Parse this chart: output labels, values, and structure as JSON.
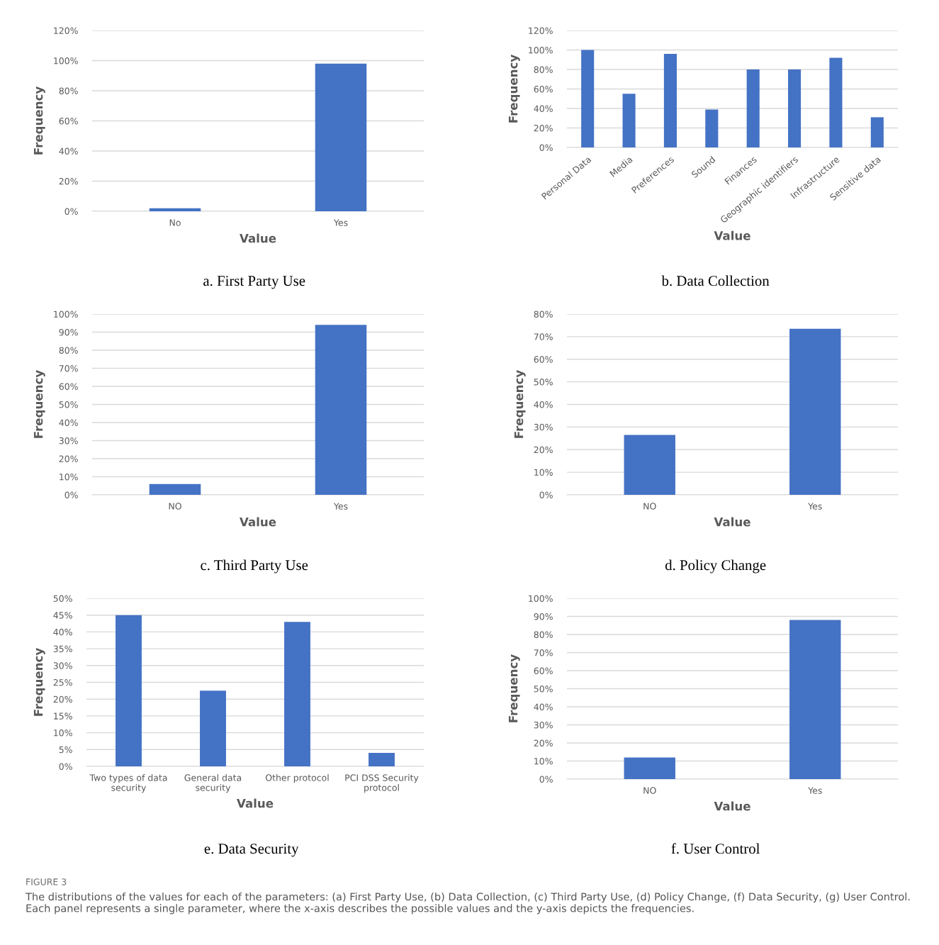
{
  "chart_data": [
    {
      "type": "bar",
      "title": "a. First Party Use",
      "xlabel": "Value",
      "ylabel": "Frequency",
      "categories": [
        "No",
        "Yes"
      ],
      "values": [
        2,
        98
      ],
      "color": "#4472c4",
      "ylim": [
        0,
        120
      ],
      "yticks": [
        {
          "value": 0,
          "label": "0%"
        },
        {
          "value": 20,
          "label": "20%"
        },
        {
          "value": 40,
          "label": "40%"
        },
        {
          "value": 60,
          "label": "60%"
        },
        {
          "value": 80,
          "label": "80%"
        },
        {
          "value": 100,
          "label": "100%"
        },
        {
          "value": 120,
          "label": "120%"
        }
      ],
      "grid": "y",
      "legend": false
    },
    {
      "type": "bar",
      "title": "b. Data Collection",
      "xlabel": "Value",
      "ylabel": "Frequency",
      "categories": [
        "Personal Data",
        "Media",
        "Preferences",
        "Sound",
        "Finances",
        "Geographic identifiers",
        "Infrastructure",
        "Sensitive data"
      ],
      "values": [
        100,
        55,
        96,
        39,
        80,
        80,
        92,
        31
      ],
      "color": "#4472c4",
      "ylim": [
        0,
        120
      ],
      "yticks": [
        {
          "value": 0,
          "label": "0%"
        },
        {
          "value": 20,
          "label": "20%"
        },
        {
          "value": 40,
          "label": "40%"
        },
        {
          "value": 60,
          "label": "60%"
        },
        {
          "value": 80,
          "label": "80%"
        },
        {
          "value": 100,
          "label": "100%"
        },
        {
          "value": 120,
          "label": "120%"
        }
      ],
      "grid": "y",
      "legend": false
    },
    {
      "type": "bar",
      "title": "c. Third Party Use",
      "xlabel": "Value",
      "ylabel": "Frequency",
      "categories": [
        "NO",
        "Yes"
      ],
      "values": [
        6,
        94
      ],
      "color": "#4472c4",
      "ylim": [
        0,
        100
      ],
      "yticks": [
        {
          "value": 0,
          "label": "0%"
        },
        {
          "value": 10,
          "label": "10%"
        },
        {
          "value": 20,
          "label": "20%"
        },
        {
          "value": 30,
          "label": "30%"
        },
        {
          "value": 40,
          "label": "40%"
        },
        {
          "value": 50,
          "label": "50%"
        },
        {
          "value": 60,
          "label": "60%"
        },
        {
          "value": 70,
          "label": "70%"
        },
        {
          "value": 80,
          "label": "80%"
        },
        {
          "value": 90,
          "label": "90%"
        },
        {
          "value": 100,
          "label": "100%"
        }
      ],
      "grid": "y",
      "legend": false
    },
    {
      "type": "bar",
      "title": "d. Policy Change",
      "xlabel": "Value",
      "ylabel": "Frequency",
      "categories": [
        "NO",
        "Yes"
      ],
      "values": [
        26.5,
        73.5
      ],
      "color": "#4472c4",
      "ylim": [
        0,
        80
      ],
      "yticks": [
        {
          "value": 0,
          "label": "0%"
        },
        {
          "value": 10,
          "label": "10%"
        },
        {
          "value": 20,
          "label": "20%"
        },
        {
          "value": 30,
          "label": "30%"
        },
        {
          "value": 40,
          "label": "40%"
        },
        {
          "value": 50,
          "label": "50%"
        },
        {
          "value": 60,
          "label": "60%"
        },
        {
          "value": 70,
          "label": "70%"
        },
        {
          "value": 80,
          "label": "80%"
        }
      ],
      "grid": "y",
      "legend": false
    },
    {
      "type": "bar",
      "title": "e. Data Security",
      "xlabel": "Value",
      "ylabel": "Frequency",
      "categories": [
        "Two types of data\nsecurity",
        "General data\nsecurity",
        "Other protocol",
        "PCI DSS Security\nprotocol"
      ],
      "values": [
        45,
        22.5,
        43,
        4
      ],
      "color": "#4472c4",
      "ylim": [
        0,
        50
      ],
      "yticks": [
        {
          "value": 0,
          "label": "0%"
        },
        {
          "value": 5,
          "label": "5%"
        },
        {
          "value": 10,
          "label": "10%"
        },
        {
          "value": 15,
          "label": "15%"
        },
        {
          "value": 20,
          "label": "20%"
        },
        {
          "value": 25,
          "label": "25%"
        },
        {
          "value": 30,
          "label": "30%"
        },
        {
          "value": 35,
          "label": "35%"
        },
        {
          "value": 40,
          "label": "40%"
        },
        {
          "value": 45,
          "label": "45%"
        },
        {
          "value": 50,
          "label": "50%"
        }
      ],
      "grid": "y",
      "legend": false
    },
    {
      "type": "bar",
      "title": "f. User Control",
      "xlabel": "Value",
      "ylabel": "Frequency",
      "categories": [
        "NO",
        "Yes"
      ],
      "values": [
        12,
        88
      ],
      "color": "#4472c4",
      "ylim": [
        0,
        100
      ],
      "yticks": [
        {
          "value": 0,
          "label": "0%"
        },
        {
          "value": 10,
          "label": "10%"
        },
        {
          "value": 20,
          "label": "20%"
        },
        {
          "value": 30,
          "label": "30%"
        },
        {
          "value": 40,
          "label": "40%"
        },
        {
          "value": 50,
          "label": "50%"
        },
        {
          "value": 60,
          "label": "60%"
        },
        {
          "value": 70,
          "label": "70%"
        },
        {
          "value": 80,
          "label": "80%"
        },
        {
          "value": 90,
          "label": "90%"
        },
        {
          "value": 100,
          "label": "100%"
        }
      ],
      "grid": "y",
      "legend": false,
      "annotations": [
        "FIGURE 3",
        "The distributions of the values for each of the parameters: (a) First Party Use, (b) Data Collection, (c) Third Party Use, (d) Policy Change, (f) Data Security, (g) User Control. Each panel represents a single parameter, where the x-axis describes the possible values and the y-axis depicts the frequencies."
      ]
    }
  ]
}
